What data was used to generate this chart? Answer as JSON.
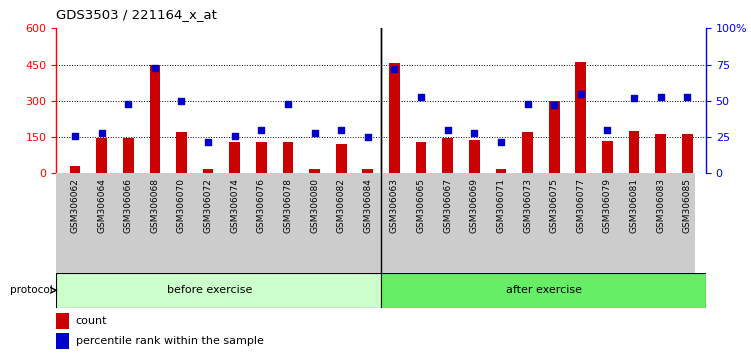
{
  "title": "GDS3503 / 221164_x_at",
  "categories": [
    "GSM306062",
    "GSM306064",
    "GSM306066",
    "GSM306068",
    "GSM306070",
    "GSM306072",
    "GSM306074",
    "GSM306076",
    "GSM306078",
    "GSM306080",
    "GSM306082",
    "GSM306084",
    "GSM306063",
    "GSM306065",
    "GSM306067",
    "GSM306069",
    "GSM306071",
    "GSM306073",
    "GSM306075",
    "GSM306077",
    "GSM306079",
    "GSM306081",
    "GSM306083",
    "GSM306085"
  ],
  "count_values": [
    30,
    145,
    145,
    450,
    170,
    18,
    130,
    130,
    130,
    20,
    120,
    18,
    455,
    130,
    145,
    140,
    18,
    170,
    300,
    460,
    135,
    175,
    165,
    165
  ],
  "percentile_values": [
    26,
    28,
    48,
    73,
    50,
    22,
    26,
    30,
    48,
    28,
    30,
    25,
    72,
    53,
    30,
    28,
    22,
    48,
    47,
    55,
    30,
    52,
    53,
    53
  ],
  "n_before": 12,
  "n_after": 12,
  "bar_color": "#cc0000",
  "dot_color": "#0000cc",
  "left_ylim": [
    0,
    600
  ],
  "right_ylim": [
    0,
    100
  ],
  "left_yticks": [
    0,
    150,
    300,
    450,
    600
  ],
  "right_yticks": [
    0,
    25,
    50,
    75,
    100
  ],
  "right_yticklabels": [
    "0",
    "25",
    "50",
    "75",
    "100%"
  ],
  "before_label": "before exercise",
  "after_label": "after exercise",
  "protocol_label": "protocol",
  "legend_count": "count",
  "legend_pct": "percentile rank within the sample",
  "before_color": "#ccffcc",
  "after_color": "#66ee66",
  "xtick_bg": "#cccccc"
}
